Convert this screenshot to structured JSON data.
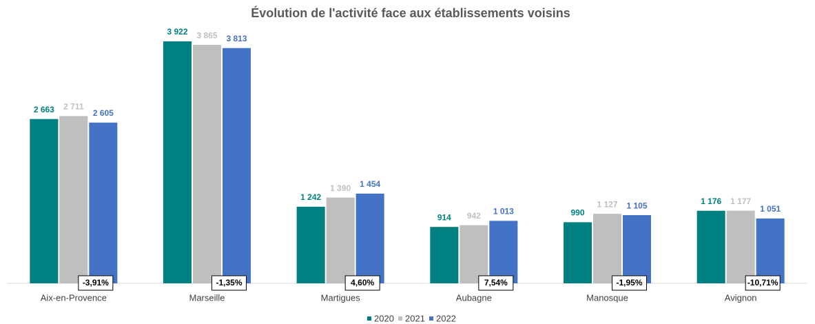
{
  "chart_data": {
    "type": "bar",
    "title": "Évolution de l'activité face aux établissements voisins",
    "categories": [
      "Aix-en-Provence",
      "Marseille",
      "Martigues",
      "Aubagne",
      "Manosque",
      "Avignon"
    ],
    "series": [
      {
        "name": "2020",
        "color": "#008080",
        "values": [
          2663,
          3922,
          1242,
          914,
          990,
          1176
        ],
        "value_labels": [
          "2 663",
          "3 922",
          "1 242",
          "914",
          "990",
          "1 176"
        ]
      },
      {
        "name": "2021",
        "color": "#bfbfbf",
        "values": [
          2711,
          3865,
          1390,
          942,
          1127,
          1177
        ],
        "value_labels": [
          "2 711",
          "3 865",
          "1 390",
          "942",
          "1 127",
          "1 177"
        ]
      },
      {
        "name": "2022",
        "color": "#4472c4",
        "values": [
          2605,
          3813,
          1454,
          1013,
          1105,
          1051
        ],
        "value_labels": [
          "2 605",
          "3 813",
          "1 454",
          "1 013",
          "1 105",
          "1 051"
        ]
      }
    ],
    "annotations": [
      "-3,91%",
      "-1,35%",
      "4,60%",
      "7,54%",
      "-1,95%",
      "-10,71%"
    ],
    "ylim": [
      0,
      4000
    ],
    "legend": "bottom"
  }
}
